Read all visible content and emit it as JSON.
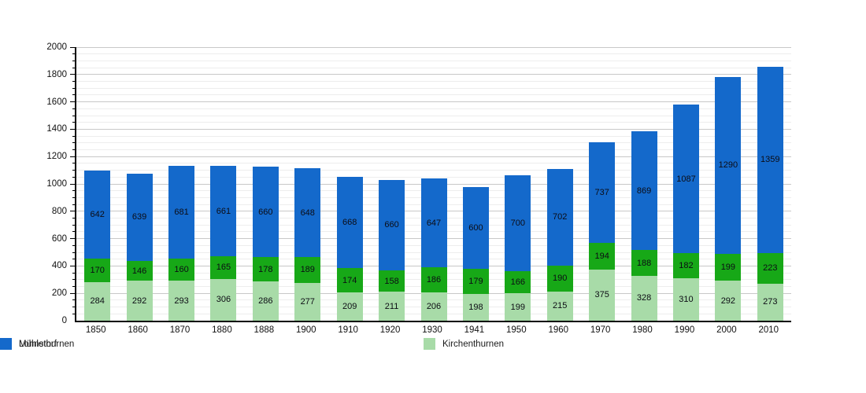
{
  "chart_data": {
    "type": "bar",
    "stacked": true,
    "title": "",
    "xlabel": "",
    "ylabel": "",
    "categories": [
      "1850",
      "1860",
      "1870",
      "1880",
      "1888",
      "1900",
      "1910",
      "1920",
      "1930",
      "1941",
      "1950",
      "1960",
      "1970",
      "1980",
      "1990",
      "2000",
      "2010"
    ],
    "series": [
      {
        "name": "Kirchenthurnen",
        "color": "#a8dba8",
        "values": [
          284,
          292,
          293,
          306,
          286,
          277,
          209,
          211,
          206,
          198,
          199,
          215,
          375,
          328,
          310,
          292,
          273
        ]
      },
      {
        "name": "Lohnstorf",
        "color": "#17a817",
        "values": [
          170,
          146,
          160,
          165,
          178,
          189,
          174,
          158,
          186,
          179,
          166,
          190,
          194,
          188,
          182,
          199,
          223
        ]
      },
      {
        "name": "Mühlethurnen",
        "color": "#1469cb",
        "values": [
          642,
          639,
          681,
          661,
          660,
          648,
          668,
          660,
          647,
          600,
          700,
          702,
          737,
          869,
          1087,
          1290,
          1359
        ]
      }
    ],
    "ylim": [
      0,
      2000
    ],
    "y_ticks": [
      0,
      200,
      400,
      600,
      800,
      1000,
      1200,
      1400,
      1600,
      1800,
      2000
    ],
    "y_minor_step": 50,
    "grid": true,
    "legend_position": "bottom",
    "value_labels_shown": true
  }
}
